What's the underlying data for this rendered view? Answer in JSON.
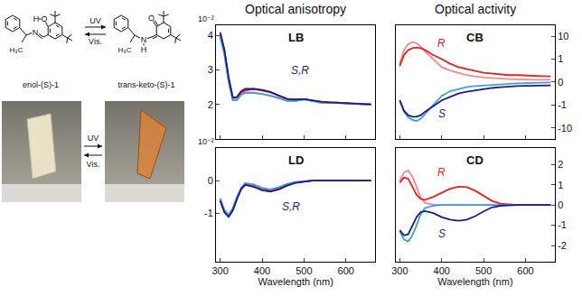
{
  "scheme": {
    "left": {
      "label": "enol-(S)-1",
      "N": "N",
      "O": "O",
      "H": "H",
      "CH3": "H₃C"
    },
    "right": {
      "label": "trans-keto-(S)-1",
      "N": "N",
      "O": "O",
      "H": "H",
      "CH3": "H₃C"
    },
    "forward": "UV",
    "back": "Vis."
  },
  "photos": {
    "forward": "UV",
    "back": "Vis."
  },
  "headers": [
    "Optical anisotropy",
    "Optical activity"
  ],
  "chart_data": [
    {
      "type": "line",
      "title": "LB",
      "y_unit": "10⁻²",
      "tick_labels": "y",
      "grid": false,
      "x": [
        300,
        310,
        320,
        330,
        340,
        350,
        360,
        380,
        400,
        420,
        440,
        460,
        480,
        500,
        520,
        540,
        560,
        580,
        600,
        620,
        640,
        660
      ],
      "xlim": [
        290,
        670
      ],
      "xticks": [
        300,
        400,
        500,
        600
      ],
      "ylim": [
        1.0,
        4.3
      ],
      "yticks": [
        2,
        3,
        4
      ],
      "series": [
        {
          "color": "#f28a8a",
          "values": [
            4.0,
            3.5,
            2.7,
            2.15,
            2.15,
            2.3,
            2.35,
            2.35,
            2.3,
            2.25,
            2.2,
            2.1,
            2.1,
            2.15,
            2.1,
            2.05,
            2.05,
            2.05,
            2.03,
            2.02,
            2.0,
            2.0
          ]
        },
        {
          "color": "#e3231c",
          "values": [
            4.05,
            3.55,
            2.75,
            2.2,
            2.2,
            2.35,
            2.4,
            2.45,
            2.4,
            2.35,
            2.25,
            2.15,
            2.15,
            2.15,
            2.1,
            2.08,
            2.05,
            2.05,
            2.03,
            2.02,
            2.0,
            2.0
          ]
        },
        {
          "color": "#3a9fdc",
          "values": [
            3.95,
            3.45,
            2.65,
            2.12,
            2.12,
            2.28,
            2.33,
            2.33,
            2.3,
            2.25,
            2.18,
            2.1,
            2.1,
            2.14,
            2.1,
            2.05,
            2.05,
            2.04,
            2.02,
            2.01,
            2.0,
            2.0
          ]
        },
        {
          "color": "#1c1c84",
          "values": [
            4.1,
            3.6,
            2.8,
            2.2,
            2.22,
            2.38,
            2.45,
            2.45,
            2.42,
            2.36,
            2.26,
            2.16,
            2.14,
            2.16,
            2.12,
            2.08,
            2.06,
            2.05,
            2.03,
            2.02,
            2.0,
            2.0
          ]
        }
      ],
      "annotations": [
        {
          "text": "S,R",
          "x": 490,
          "y": 3.0,
          "color": "#1c1c84"
        }
      ]
    },
    {
      "type": "line",
      "title": "LD",
      "y_unit": "10⁻²",
      "grid": false,
      "x_label": "Wavelength (nm)",
      "x": [
        300,
        310,
        320,
        330,
        340,
        350,
        360,
        380,
        400,
        420,
        440,
        460,
        480,
        500,
        520,
        540,
        560,
        580,
        600,
        620,
        640,
        660
      ],
      "xlim": [
        290,
        670
      ],
      "xticks": [
        300,
        400,
        500,
        600
      ],
      "ylim": [
        -2.5,
        1.0
      ],
      "yticks": [
        -1,
        0
      ],
      "series": [
        {
          "color": "#f28a8a",
          "values": [
            -0.6,
            -0.95,
            -1.1,
            -0.9,
            -0.55,
            -0.25,
            -0.1,
            -0.15,
            -0.25,
            -0.3,
            -0.22,
            -0.12,
            -0.05,
            -0.02,
            0,
            0,
            0,
            0,
            0,
            0,
            0,
            0
          ]
        },
        {
          "color": "#e3231c",
          "values": [
            -0.6,
            -0.95,
            -1.1,
            -0.9,
            -0.55,
            -0.25,
            -0.12,
            -0.18,
            -0.28,
            -0.32,
            -0.25,
            -0.14,
            -0.06,
            -0.02,
            0,
            0,
            0,
            0,
            0,
            0,
            0,
            0
          ]
        },
        {
          "color": "#3a9fdc",
          "values": [
            -0.55,
            -0.9,
            -1.05,
            -0.85,
            -0.5,
            -0.22,
            -0.08,
            -0.12,
            -0.22,
            -0.27,
            -0.2,
            -0.1,
            -0.04,
            -0.01,
            0,
            0,
            0,
            0,
            0,
            0,
            0,
            0
          ]
        },
        {
          "color": "#1c1c84",
          "values": [
            -0.62,
            -0.98,
            -1.12,
            -0.92,
            -0.57,
            -0.27,
            -0.13,
            -0.19,
            -0.3,
            -0.34,
            -0.27,
            -0.15,
            -0.07,
            -0.03,
            0,
            0,
            0,
            0,
            0,
            0,
            0,
            0
          ]
        }
      ],
      "annotations": [
        {
          "text": "S,R",
          "x": 470,
          "y": -0.8,
          "color": "#1c1c84"
        }
      ]
    },
    {
      "type": "line",
      "title": "CB",
      "tick_labels": "y",
      "grid": false,
      "log": "y",
      "x": [
        300,
        310,
        320,
        330,
        340,
        350,
        360,
        380,
        400,
        420,
        440,
        460,
        480,
        500,
        520,
        540,
        560,
        580,
        600,
        620,
        640,
        660
      ],
      "xlim": [
        290,
        670
      ],
      "xticks": [
        300,
        400,
        500,
        600
      ],
      "ylim": [
        -30,
        30
      ],
      "yticks": [
        10,
        1,
        0,
        -1,
        -10
      ],
      "series": [
        {
          "color": "#f28a8a",
          "values": [
            0.8,
            2.5,
            4.5,
            5.5,
            5.0,
            3.5,
            2.2,
            1.0,
            0.65,
            0.5,
            0.4,
            0.3,
            0.25,
            0.2,
            0.18,
            0.15,
            0.13,
            0.12,
            0.1,
            0.1,
            0.1,
            0.1
          ]
        },
        {
          "color": "#e3231c",
          "values": [
            0.7,
            1.5,
            2.5,
            3.0,
            3.2,
            3.0,
            2.5,
            1.5,
            1.0,
            0.8,
            0.65,
            0.55,
            0.48,
            0.4,
            0.36,
            0.33,
            0.3,
            0.3,
            0.28,
            0.27,
            0.26,
            0.25
          ]
        },
        {
          "color": "#3a9fdc",
          "values": [
            -0.8,
            -2.0,
            -3.5,
            -4.5,
            -5.0,
            -4.0,
            -2.5,
            -1.0,
            -0.6,
            -0.4,
            -0.3,
            -0.22,
            -0.18,
            -0.15,
            -0.12,
            -0.1,
            -0.08,
            -0.06,
            -0.05,
            -0.04,
            -0.03,
            -0.02
          ]
        },
        {
          "color": "#1c1c84",
          "values": [
            -0.8,
            -1.8,
            -2.8,
            -3.3,
            -3.3,
            -2.8,
            -2.0,
            -1.1,
            -0.8,
            -0.65,
            -0.5,
            -0.42,
            -0.36,
            -0.3,
            -0.26,
            -0.23,
            -0.2,
            -0.18,
            -0.17,
            -0.16,
            -0.15,
            -0.15
          ]
        }
      ],
      "annotations": [
        {
          "text": "R",
          "x": 400,
          "y": 5,
          "color": "#e3231c"
        },
        {
          "text": "S",
          "x": 400,
          "y": -2.5,
          "color": "#1c1c84"
        }
      ]
    },
    {
      "type": "line",
      "title": "CD",
      "grid": false,
      "x_label": "Wavelength (nm)",
      "x": [
        300,
        310,
        320,
        330,
        340,
        350,
        360,
        380,
        400,
        420,
        440,
        460,
        480,
        500,
        520,
        540,
        560,
        580,
        600,
        620,
        640,
        660
      ],
      "xlim": [
        290,
        670
      ],
      "xticks": [
        300,
        400,
        500,
        600
      ],
      "ylim": [
        -2.8,
        2.8
      ],
      "yticks": [
        2,
        1,
        0,
        -1,
        -2
      ],
      "series": [
        {
          "color": "#f28a8a",
          "values": [
            1.2,
            1.6,
            1.7,
            1.4,
            0.9,
            0.35,
            0.1,
            0.02,
            0,
            0,
            0,
            0,
            0,
            0,
            0,
            0,
            0,
            0,
            0,
            0,
            0,
            0
          ]
        },
        {
          "color": "#e3231c",
          "values": [
            1.1,
            1.35,
            1.3,
            0.9,
            0.5,
            0.3,
            0.25,
            0.4,
            0.6,
            0.8,
            0.9,
            0.88,
            0.7,
            0.45,
            0.2,
            0.07,
            0.02,
            0,
            0,
            0,
            0,
            0
          ]
        },
        {
          "color": "#3a9fdc",
          "values": [
            -1.3,
            -1.7,
            -1.8,
            -1.5,
            -1.0,
            -0.45,
            -0.15,
            -0.03,
            0,
            0,
            0,
            0,
            0,
            0,
            0,
            0,
            0,
            0,
            0,
            0,
            0,
            0
          ]
        },
        {
          "color": "#1c1c84",
          "values": [
            -1.25,
            -1.5,
            -1.45,
            -1.0,
            -0.6,
            -0.35,
            -0.3,
            -0.4,
            -0.6,
            -0.72,
            -0.78,
            -0.72,
            -0.55,
            -0.32,
            -0.12,
            -0.04,
            -0.01,
            0,
            0,
            0,
            0,
            0
          ]
        }
      ],
      "annotations": [
        {
          "text": "R",
          "x": 400,
          "y": 1.6,
          "color": "#e3231c"
        },
        {
          "text": "S",
          "x": 400,
          "y": -1.4,
          "color": "#1c1c84"
        }
      ]
    }
  ]
}
